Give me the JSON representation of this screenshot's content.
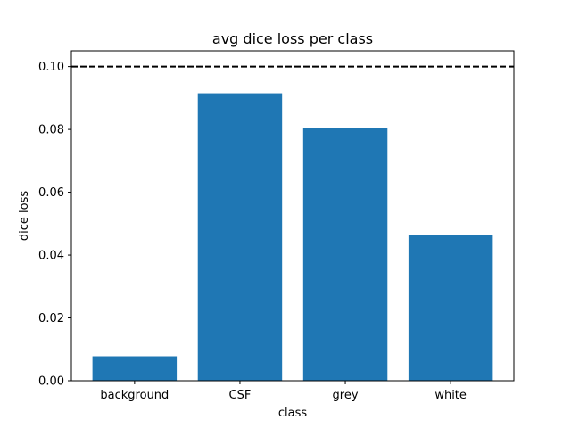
{
  "chart_data": {
    "type": "bar",
    "title": "avg dice loss per class",
    "xlabel": "class",
    "ylabel": "dice loss",
    "categories": [
      "background",
      "CSF",
      "grey",
      "white"
    ],
    "values": [
      0.0078,
      0.0915,
      0.0805,
      0.0463
    ],
    "ylim": [
      0,
      0.105
    ],
    "yticks": [
      "0.00",
      "0.02",
      "0.04",
      "0.06",
      "0.08",
      "0.10"
    ],
    "ytick_values": [
      0,
      0.02,
      0.04,
      0.06,
      0.08,
      0.1
    ],
    "threshold": 0.1,
    "grid": false,
    "bar_color": "#1f77b4",
    "threshold_color": "#000000"
  }
}
